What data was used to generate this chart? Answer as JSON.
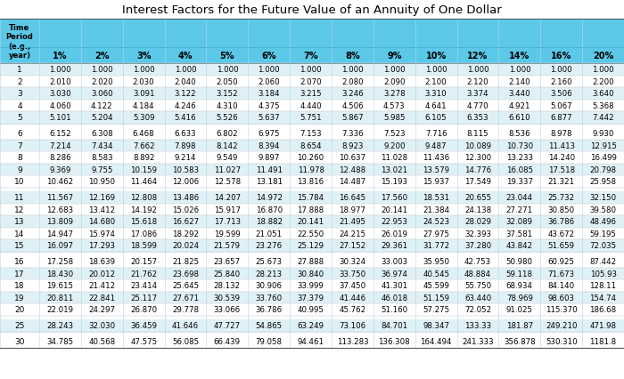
{
  "title": "Interest Factors for the Future Value of an Annuity of One Dollar",
  "header_row": [
    "Time\nPeriod\n(e.g.,\nyear)",
    "1%",
    "2%",
    "3%",
    "4%",
    "5%",
    "6%",
    "7%",
    "8%",
    "9%",
    "10%",
    "12%",
    "14%",
    "16%",
    "20%"
  ],
  "rows": [
    [
      "1",
      "1.000",
      "1.000",
      "1.000",
      "1.000",
      "1.000",
      "1.000",
      "1.000",
      "1.000",
      "1.000",
      "1.000",
      "1.000",
      "1.000",
      "1.000",
      "1.000"
    ],
    [
      "2",
      "2.010",
      "2.020",
      "2.030",
      "2.040",
      "2.050",
      "2.060",
      "2.070",
      "2.080",
      "2.090",
      "2.100",
      "2.120",
      "2.140",
      "2.160",
      "2.200"
    ],
    [
      "3",
      "3.030",
      "3.060",
      "3.091",
      "3.122",
      "3.152",
      "3.184",
      "3.215",
      "3.246",
      "3.278",
      "3.310",
      "3.374",
      "3.440",
      "3.506",
      "3.640"
    ],
    [
      "4",
      "4.060",
      "4.122",
      "4.184",
      "4.246",
      "4.310",
      "4.375",
      "4.440",
      "4.506",
      "4.573",
      "4.641",
      "4.770",
      "4.921",
      "5.067",
      "5.368"
    ],
    [
      "5",
      "5.101",
      "5.204",
      "5.309",
      "5.416",
      "5.526",
      "5.637",
      "5.751",
      "5.867",
      "5.985",
      "6.105",
      "6.353",
      "6.610",
      "6.877",
      "7.442"
    ],
    [
      "6",
      "6.152",
      "6.308",
      "6.468",
      "6.633",
      "6.802",
      "6.975",
      "7.153",
      "7.336",
      "7.523",
      "7.716",
      "8.115",
      "8.536",
      "8.978",
      "9.930"
    ],
    [
      "7",
      "7.214",
      "7.434",
      "7.662",
      "7.898",
      "8.142",
      "8.394",
      "8.654",
      "8.923",
      "9.200",
      "9.487",
      "10.089",
      "10.730",
      "11.413",
      "12.915"
    ],
    [
      "8",
      "8.286",
      "8.583",
      "8.892",
      "9.214",
      "9.549",
      "9.897",
      "10.260",
      "10.637",
      "11.028",
      "11.436",
      "12.300",
      "13.233",
      "14.240",
      "16.499"
    ],
    [
      "9",
      "9.369",
      "9.755",
      "10.159",
      "10.583",
      "11.027",
      "11.491",
      "11.978",
      "12.488",
      "13.021",
      "13.579",
      "14.776",
      "16.085",
      "17.518",
      "20.798"
    ],
    [
      "10",
      "10.462",
      "10.950",
      "11.464",
      "12.006",
      "12.578",
      "13.181",
      "13.816",
      "14.487",
      "15.193",
      "15.937",
      "17.549",
      "19.337",
      "21.321",
      "25.958"
    ],
    [
      "11",
      "11.567",
      "12.169",
      "12.808",
      "13.486",
      "14.207",
      "14.972",
      "15.784",
      "16.645",
      "17.560",
      "18.531",
      "20.655",
      "23.044",
      "25.732",
      "32.150"
    ],
    [
      "12",
      "12.683",
      "13.412",
      "14.192",
      "15.026",
      "15.917",
      "16.870",
      "17.888",
      "18.977",
      "20.141",
      "21.384",
      "24.138",
      "27.271",
      "30.850",
      "39.580"
    ],
    [
      "13",
      "13.809",
      "14.680",
      "15.618",
      "16.627",
      "17.713",
      "18.882",
      "20.141",
      "21.495",
      "22.953",
      "24.523",
      "28.029",
      "32.089",
      "36.786",
      "48.496"
    ],
    [
      "14",
      "14.947",
      "15.974",
      "17.086",
      "18.292",
      "19.599",
      "21.051",
      "22.550",
      "24.215",
      "26.019",
      "27.975",
      "32.393",
      "37.581",
      "43.672",
      "59.195"
    ],
    [
      "15",
      "16.097",
      "17.293",
      "18.599",
      "20.024",
      "21.579",
      "23.276",
      "25.129",
      "27.152",
      "29.361",
      "31.772",
      "37.280",
      "43.842",
      "51.659",
      "72.035"
    ],
    [
      "16",
      "17.258",
      "18.639",
      "20.157",
      "21.825",
      "23.657",
      "25.673",
      "27.888",
      "30.324",
      "33.003",
      "35.950",
      "42.753",
      "50.980",
      "60.925",
      "87.442"
    ],
    [
      "17",
      "18.430",
      "20.012",
      "21.762",
      "23.698",
      "25.840",
      "28.213",
      "30.840",
      "33.750",
      "36.974",
      "40.545",
      "48.884",
      "59.118",
      "71.673",
      "105.93"
    ],
    [
      "18",
      "19.615",
      "21.412",
      "23.414",
      "25.645",
      "28.132",
      "30.906",
      "33.999",
      "37.450",
      "41.301",
      "45.599",
      "55.750",
      "68.934",
      "84.140",
      "128.11"
    ],
    [
      "19",
      "20.811",
      "22.841",
      "25.117",
      "27.671",
      "30.539",
      "33.760",
      "37.379",
      "41.446",
      "46.018",
      "51.159",
      "63.440",
      "78.969",
      "98.603",
      "154.74"
    ],
    [
      "20",
      "22.019",
      "24.297",
      "26.870",
      "29.778",
      "33.066",
      "36.786",
      "40.995",
      "45.762",
      "51.160",
      "57.275",
      "72.052",
      "91.025",
      "115.370",
      "186.68"
    ],
    [
      "25",
      "28.243",
      "32.030",
      "36.459",
      "41.646",
      "47.727",
      "54.865",
      "63.249",
      "73.106",
      "84.701",
      "98.347",
      "133.33",
      "181.87",
      "249.210",
      "471.98"
    ],
    [
      "30",
      "34.785",
      "40.568",
      "47.575",
      "56.085",
      "66.439",
      "79.058",
      "94.461",
      "113.283",
      "136.308",
      "164.494",
      "241.333",
      "356.878",
      "530.310",
      "1181.8"
    ]
  ],
  "header_bg": "#5bc8e8",
  "title_bg": "#ffffff",
  "row_bg_light": "#dff0f7",
  "row_bg_white": "#ffffff",
  "title_color": "#000000",
  "cell_text_color": "#000000",
  "header_text_color": "#000000",
  "title_fontsize": 9.5,
  "header_fontsize": 7.0,
  "cell_fontsize": 6.2,
  "row_num_fontsize": 6.5,
  "fig_width": 7.0,
  "fig_height": 4.27,
  "dpi": 100
}
